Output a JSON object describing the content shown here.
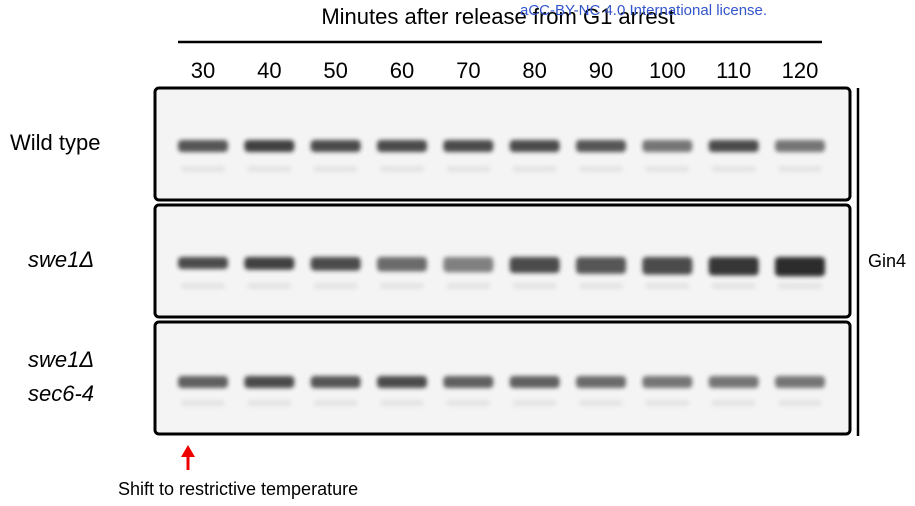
{
  "header": {
    "license": "aCC-BY-NC 4.0 International license.",
    "title": "Minutes after release from G1 arrest"
  },
  "timepoints": [
    "30",
    "40",
    "50",
    "60",
    "70",
    "80",
    "90",
    "100",
    "110",
    "120"
  ],
  "rows": [
    {
      "label": [
        "Wild type"
      ],
      "italic": false
    },
    {
      "label": [
        "swe1Δ"
      ],
      "italic": true
    },
    {
      "label": [
        "swe1Δ",
        "sec6-4"
      ],
      "italic": true
    }
  ],
  "antibody": "Gin4",
  "annotation": "Shift to restrictive temperature"
}
